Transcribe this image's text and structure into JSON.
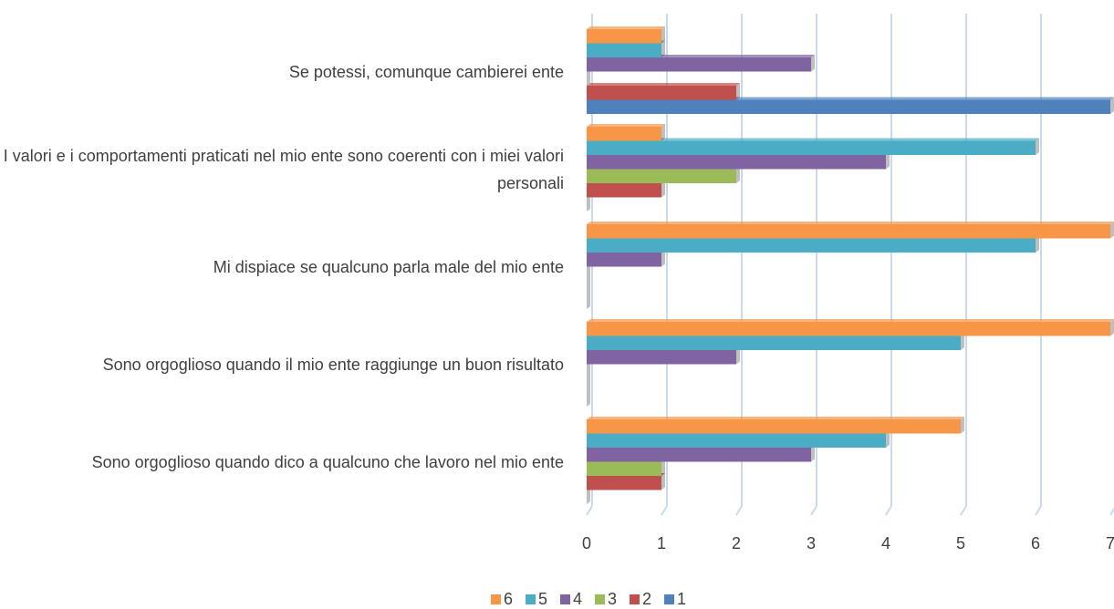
{
  "chart_data": {
    "type": "bar",
    "orientation": "horizontal",
    "categories": [
      "Sono orgoglioso quando dico a qualcuno che lavoro nel mio ente",
      "Sono orgoglioso quando il mio ente raggiunge un buon risultato",
      "Mi dispiace se qualcuno parla male del mio ente",
      "I valori e i comportamenti praticati nel mio ente sono coerenti con i miei valori personali",
      "Se potessi, comunque cambierei ente"
    ],
    "series": [
      {
        "name": "1",
        "color": "#4f81bd",
        "values": [
          0,
          0,
          0,
          0,
          7
        ]
      },
      {
        "name": "2",
        "color": "#c0504d",
        "values": [
          1,
          0,
          0,
          1,
          2
        ]
      },
      {
        "name": "3",
        "color": "#9bbb59",
        "values": [
          1,
          0,
          0,
          2,
          0
        ]
      },
      {
        "name": "4",
        "color": "#8064a2",
        "values": [
          3,
          2,
          1,
          4,
          3
        ]
      },
      {
        "name": "5",
        "color": "#4bacc6",
        "values": [
          4,
          5,
          6,
          6,
          1
        ]
      },
      {
        "name": "6",
        "color": "#f79646",
        "values": [
          5,
          7,
          7,
          1,
          1
        ]
      }
    ],
    "xlim": [
      0,
      7
    ],
    "xticks": [
      0,
      1,
      2,
      3,
      4,
      5,
      6,
      7
    ],
    "grid": true,
    "legend": "bottom"
  }
}
